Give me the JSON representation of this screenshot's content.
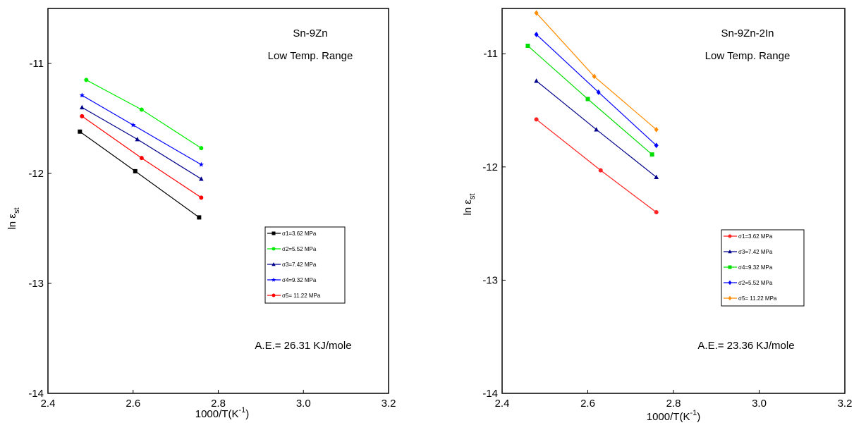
{
  "chart_data": [
    {
      "type": "line",
      "annotation_lines": [
        "Sn-9Zn",
        "Low Temp. Range"
      ],
      "activation_energy": "A.E.= 26.31 KJ/mole",
      "xlabel": "1000/T(K",
      "xlabel_sup": "-1",
      "xlabel_close": ")",
      "ylabel": "ln ε",
      "ylabel_sub": "st",
      "xlim": [
        2.4,
        3.2
      ],
      "ylim": [
        -14,
        -10.5
      ],
      "x_ticks": [
        "2.4",
        "2.6",
        "2.8",
        "3.0",
        "3.2"
      ],
      "y_ticks": [
        "-11",
        "-12",
        "-13",
        "-14"
      ],
      "legend_position": "lower-right",
      "series": [
        {
          "name": "σ1=3.62 MPa",
          "color": "#000000",
          "marker": "square",
          "x": [
            2.475,
            2.605,
            2.755
          ],
          "y": [
            -11.62,
            -11.98,
            -12.4
          ]
        },
        {
          "name": "σ2=5.52 MPa",
          "color": "#00ee00",
          "marker": "circle",
          "x": [
            2.49,
            2.62,
            2.76
          ],
          "y": [
            -11.15,
            -11.42,
            -11.77
          ]
        },
        {
          "name": "σ3=7.42 MPa",
          "color": "#00008b",
          "marker": "triangle",
          "x": [
            2.48,
            2.61,
            2.76
          ],
          "y": [
            -11.4,
            -11.69,
            -12.05
          ]
        },
        {
          "name": "σ4=9.32 MPa",
          "color": "#0000ff",
          "marker": "star",
          "x": [
            2.48,
            2.6,
            2.76
          ],
          "y": [
            -11.29,
            -11.56,
            -11.92
          ]
        },
        {
          "name": "σ5= 11.22 MPa",
          "color": "#ff0000",
          "marker": "circle",
          "x": [
            2.48,
            2.62,
            2.76
          ],
          "y": [
            -11.48,
            -11.86,
            -12.22
          ]
        }
      ]
    },
    {
      "type": "line",
      "annotation_lines": [
        "Sn-9Zn-2In",
        "Low Temp. Range"
      ],
      "activation_energy": "A.E.= 23.36 KJ/mole",
      "xlabel": "1000/T(K",
      "xlabel_sup": "-1",
      "xlabel_close": ")",
      "ylabel": "ln ε",
      "ylabel_sub": "st",
      "xlim": [
        2.4,
        3.2
      ],
      "ylim": [
        -14,
        -10.6
      ],
      "x_ticks": [
        "2.4",
        "2.6",
        "2.8",
        "3.0",
        "3.2"
      ],
      "y_ticks": [
        "-11",
        "-12",
        "-13",
        "-14"
      ],
      "legend_position": "lower-right",
      "series": [
        {
          "name": "σ1=3.62 MPa",
          "color": "#ff2222",
          "marker": "circle",
          "x": [
            2.48,
            2.63,
            2.76
          ],
          "y": [
            -11.58,
            -12.03,
            -12.4
          ]
        },
        {
          "name": "σ3=7.42 MPa",
          "color": "#00008b",
          "marker": "triangle",
          "x": [
            2.48,
            2.62,
            2.76
          ],
          "y": [
            -11.24,
            -11.67,
            -12.09
          ]
        },
        {
          "name": "σ4=9.32 MPa",
          "color": "#00dd00",
          "marker": "square",
          "x": [
            2.46,
            2.6,
            2.75
          ],
          "y": [
            -10.93,
            -11.4,
            -11.89
          ]
        },
        {
          "name": "σ2=5.52 MPa",
          "color": "#0000ff",
          "marker": "diamond",
          "x": [
            2.48,
            2.625,
            2.76
          ],
          "y": [
            -10.83,
            -11.34,
            -11.81
          ]
        },
        {
          "name": "σ5= 11.22 MPa",
          "color": "#ff8c00",
          "marker": "diamond",
          "x": [
            2.48,
            2.615,
            2.76
          ],
          "y": [
            -10.64,
            -11.2,
            -11.67
          ]
        }
      ]
    }
  ]
}
